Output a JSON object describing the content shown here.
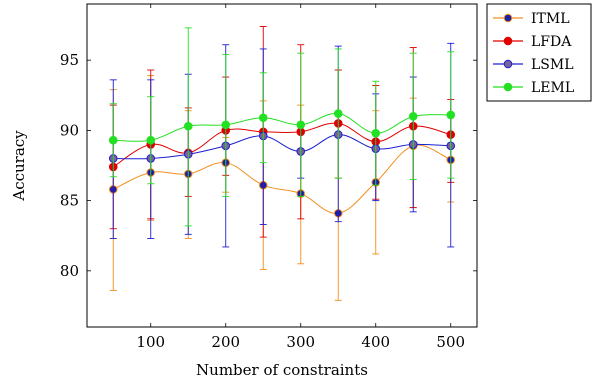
{
  "chart_data": {
    "type": "line",
    "title": "",
    "xlabel": "Number of constraints",
    "ylabel": "Accuracy",
    "xlim": [
      15,
      535
    ],
    "ylim": [
      76,
      99
    ],
    "xticks": [
      100,
      200,
      300,
      400,
      500
    ],
    "yticks": [
      80,
      85,
      90,
      95
    ],
    "grid": false,
    "legend_position": "outside-right",
    "x": [
      50,
      100,
      150,
      200,
      250,
      300,
      350,
      400,
      450,
      500
    ],
    "series": [
      {
        "name": "ITML",
        "color": "#f28e1c",
        "marker_color": "#1b1fa8",
        "values": [
          85.8,
          87.0,
          86.9,
          87.7,
          86.1,
          85.5,
          84.1,
          86.3,
          88.9,
          87.9
        ],
        "error_low": [
          78.6,
          83.6,
          82.3,
          85.6,
          80.1,
          80.5,
          77.9,
          81.2,
          84.5,
          84.9
        ],
        "error_high": [
          92.9,
          93.9,
          91.4,
          89.5,
          92.1,
          91.8,
          94.3,
          91.4,
          92.3,
          91.0
        ]
      },
      {
        "name": "LFDA",
        "color": "#e00000",
        "marker_color": "#e00000",
        "values": [
          87.4,
          89.0,
          88.4,
          90.0,
          89.9,
          89.9,
          90.5,
          89.2,
          90.3,
          89.7
        ],
        "error_low": [
          83.0,
          83.7,
          85.3,
          86.8,
          82.4,
          83.7,
          86.6,
          85.1,
          84.5,
          86.3
        ],
        "error_high": [
          91.8,
          94.3,
          91.6,
          93.8,
          97.4,
          96.1,
          94.3,
          93.2,
          95.9,
          92.2
        ]
      },
      {
        "name": "LSML",
        "color": "#1b1fd0",
        "marker_color": "#7a6098",
        "values": [
          88.0,
          88.0,
          88.3,
          88.9,
          89.6,
          88.5,
          89.7,
          88.7,
          89.0,
          88.9
        ],
        "error_low": [
          82.3,
          82.3,
          82.6,
          81.7,
          83.3,
          86.6,
          83.5,
          85.0,
          84.2,
          81.7
        ],
        "error_high": [
          93.6,
          93.6,
          94.0,
          96.1,
          95.8,
          90.4,
          96.0,
          92.6,
          93.8,
          96.2
        ]
      },
      {
        "name": "LEML",
        "color": "#22e022",
        "marker_color": "#22e022",
        "values": [
          89.3,
          89.3,
          90.3,
          90.4,
          90.9,
          90.4,
          91.2,
          89.8,
          91.0,
          91.1
        ],
        "error_low": [
          86.7,
          86.2,
          83.2,
          85.3,
          87.7,
          85.3,
          86.6,
          86.1,
          86.5,
          86.6
        ],
        "error_high": [
          91.9,
          92.4,
          97.3,
          95.4,
          94.1,
          95.5,
          95.8,
          93.5,
          95.5,
          95.6
        ]
      }
    ]
  }
}
